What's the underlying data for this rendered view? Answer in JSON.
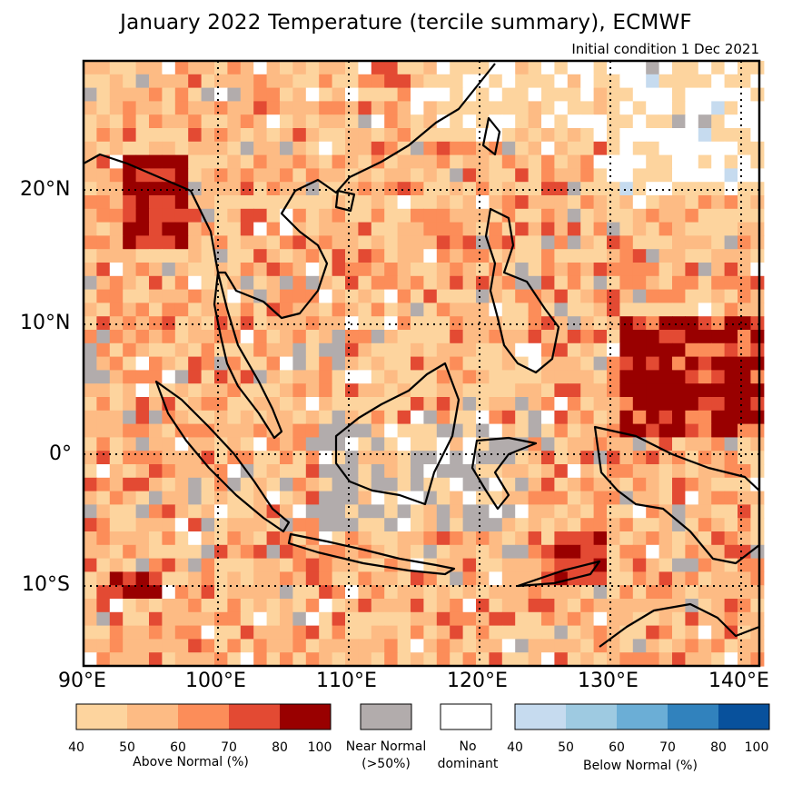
{
  "title": "January 2022 Temperature (tercile summary), ECMWF",
  "subtitle": "Initial condition 1 Dec 2021",
  "axes": {
    "lon_labels": [
      "90°E",
      "100°E",
      "110°E",
      "120°E",
      "130°E",
      "140°E"
    ],
    "lat_labels": [
      "20°N",
      "10°N",
      "0°",
      "10°S"
    ]
  },
  "legend": {
    "above": {
      "label": "Above Normal (%)",
      "ticks": [
        "40",
        "50",
        "60",
        "70",
        "80",
        "100"
      ],
      "colors": [
        "#fdd49e",
        "#fdbb84",
        "#fc8d59",
        "#e34a33",
        "#990000"
      ]
    },
    "near": {
      "label_line1": "Near Normal",
      "label_line2": "(>50%)",
      "color": "#b2acac"
    },
    "none": {
      "label_line1": "No",
      "label_line2": "dominant",
      "color": "#ffffff"
    },
    "below": {
      "label": "Below Normal (%)",
      "ticks": [
        "40",
        "50",
        "60",
        "70",
        "80",
        "100"
      ],
      "colors": [
        "#c6dbef",
        "#9ecae1",
        "#6baed6",
        "#3182bd",
        "#08519c"
      ]
    }
  }
}
